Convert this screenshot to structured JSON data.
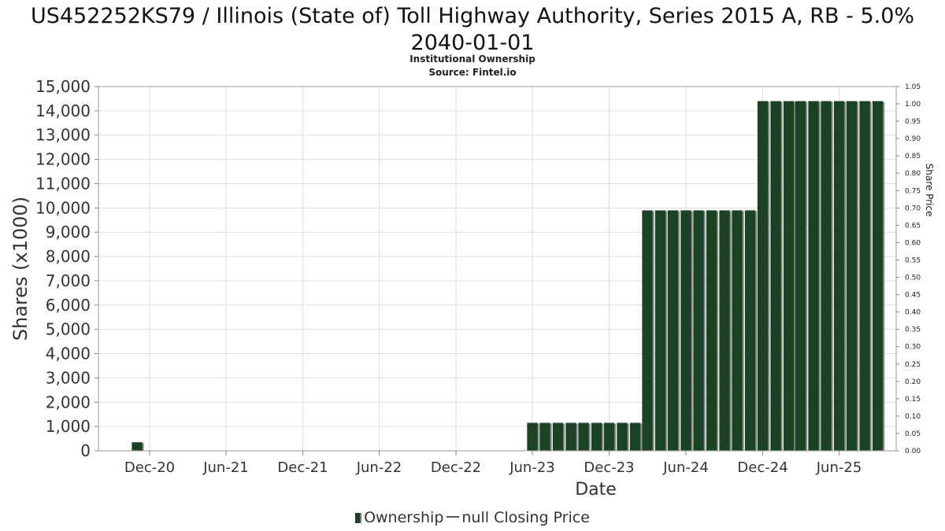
{
  "title": {
    "line1": "US452252KS79 / Illinois (State of) Toll Highway Authority, Series 2015 A, RB - 5.0%",
    "line2": "2040-01-01"
  },
  "subtitle": {
    "line1": "Institutional Ownership",
    "line2": "Source: Fintel.io"
  },
  "legend": {
    "ownership": "Ownership",
    "price": "null Closing Price"
  },
  "colors": {
    "bar": "#1a4325",
    "bar_shadow": "#8a8a8a",
    "grid": "#dddddd"
  },
  "chart_data": {
    "type": "bar",
    "xlabel": "Date",
    "ylabel": "Shares (x1000)",
    "y2label": "Share Price",
    "ylim": [
      0,
      15000
    ],
    "y2lim": [
      0,
      1.05
    ],
    "xlim": [
      "2020-08-01",
      "2025-10-15"
    ],
    "yticks": [
      "0",
      "1,000",
      "2,000",
      "3,000",
      "4,000",
      "5,000",
      "6,000",
      "7,000",
      "8,000",
      "9,000",
      "10,000",
      "11,000",
      "12,000",
      "13,000",
      "14,000",
      "15,000"
    ],
    "y2ticks": [
      "0.00",
      "0.05",
      "0.10",
      "0.15",
      "0.20",
      "0.25",
      "0.30",
      "0.35",
      "0.40",
      "0.45",
      "0.50",
      "0.55",
      "0.60",
      "0.65",
      "0.70",
      "0.75",
      "0.80",
      "0.85",
      "0.90",
      "0.95",
      "1.00",
      "1.05"
    ],
    "xticks": [
      {
        "date": "2020-12-01",
        "label": "Dec-20"
      },
      {
        "date": "2021-06-01",
        "label": "Jun-21"
      },
      {
        "date": "2021-12-01",
        "label": "Dec-21"
      },
      {
        "date": "2022-06-01",
        "label": "Jun-22"
      },
      {
        "date": "2022-12-01",
        "label": "Dec-22"
      },
      {
        "date": "2023-06-01",
        "label": "Jun-23"
      },
      {
        "date": "2023-12-01",
        "label": "Dec-23"
      },
      {
        "date": "2024-06-01",
        "label": "Jun-24"
      },
      {
        "date": "2024-12-01",
        "label": "Dec-24"
      },
      {
        "date": "2025-06-01",
        "label": "Jun-25"
      }
    ],
    "series": [
      {
        "name": "Ownership",
        "points": [
          {
            "x": "2020-11-01",
            "y": 350
          },
          {
            "x": "2023-06-01",
            "y": 1150
          },
          {
            "x": "2023-07-01",
            "y": 1150
          },
          {
            "x": "2023-08-01",
            "y": 1150
          },
          {
            "x": "2023-09-01",
            "y": 1150
          },
          {
            "x": "2023-10-01",
            "y": 1150
          },
          {
            "x": "2023-11-01",
            "y": 1150
          },
          {
            "x": "2023-12-01",
            "y": 1150
          },
          {
            "x": "2024-01-01",
            "y": 1150
          },
          {
            "x": "2024-02-01",
            "y": 1150
          },
          {
            "x": "2024-03-01",
            "y": 9900
          },
          {
            "x": "2024-04-01",
            "y": 9900
          },
          {
            "x": "2024-05-01",
            "y": 9900
          },
          {
            "x": "2024-06-01",
            "y": 9900
          },
          {
            "x": "2024-07-01",
            "y": 9900
          },
          {
            "x": "2024-08-01",
            "y": 9900
          },
          {
            "x": "2024-09-01",
            "y": 9900
          },
          {
            "x": "2024-10-01",
            "y": 9900
          },
          {
            "x": "2024-11-01",
            "y": 9900
          },
          {
            "x": "2024-12-01",
            "y": 14400
          },
          {
            "x": "2025-01-01",
            "y": 14400
          },
          {
            "x": "2025-02-01",
            "y": 14400
          },
          {
            "x": "2025-03-01",
            "y": 14400
          },
          {
            "x": "2025-04-01",
            "y": 14400
          },
          {
            "x": "2025-05-01",
            "y": 14400
          },
          {
            "x": "2025-06-01",
            "y": 14400
          },
          {
            "x": "2025-07-01",
            "y": 14400
          },
          {
            "x": "2025-08-01",
            "y": 14400
          },
          {
            "x": "2025-09-01",
            "y": 14400
          }
        ]
      }
    ]
  }
}
